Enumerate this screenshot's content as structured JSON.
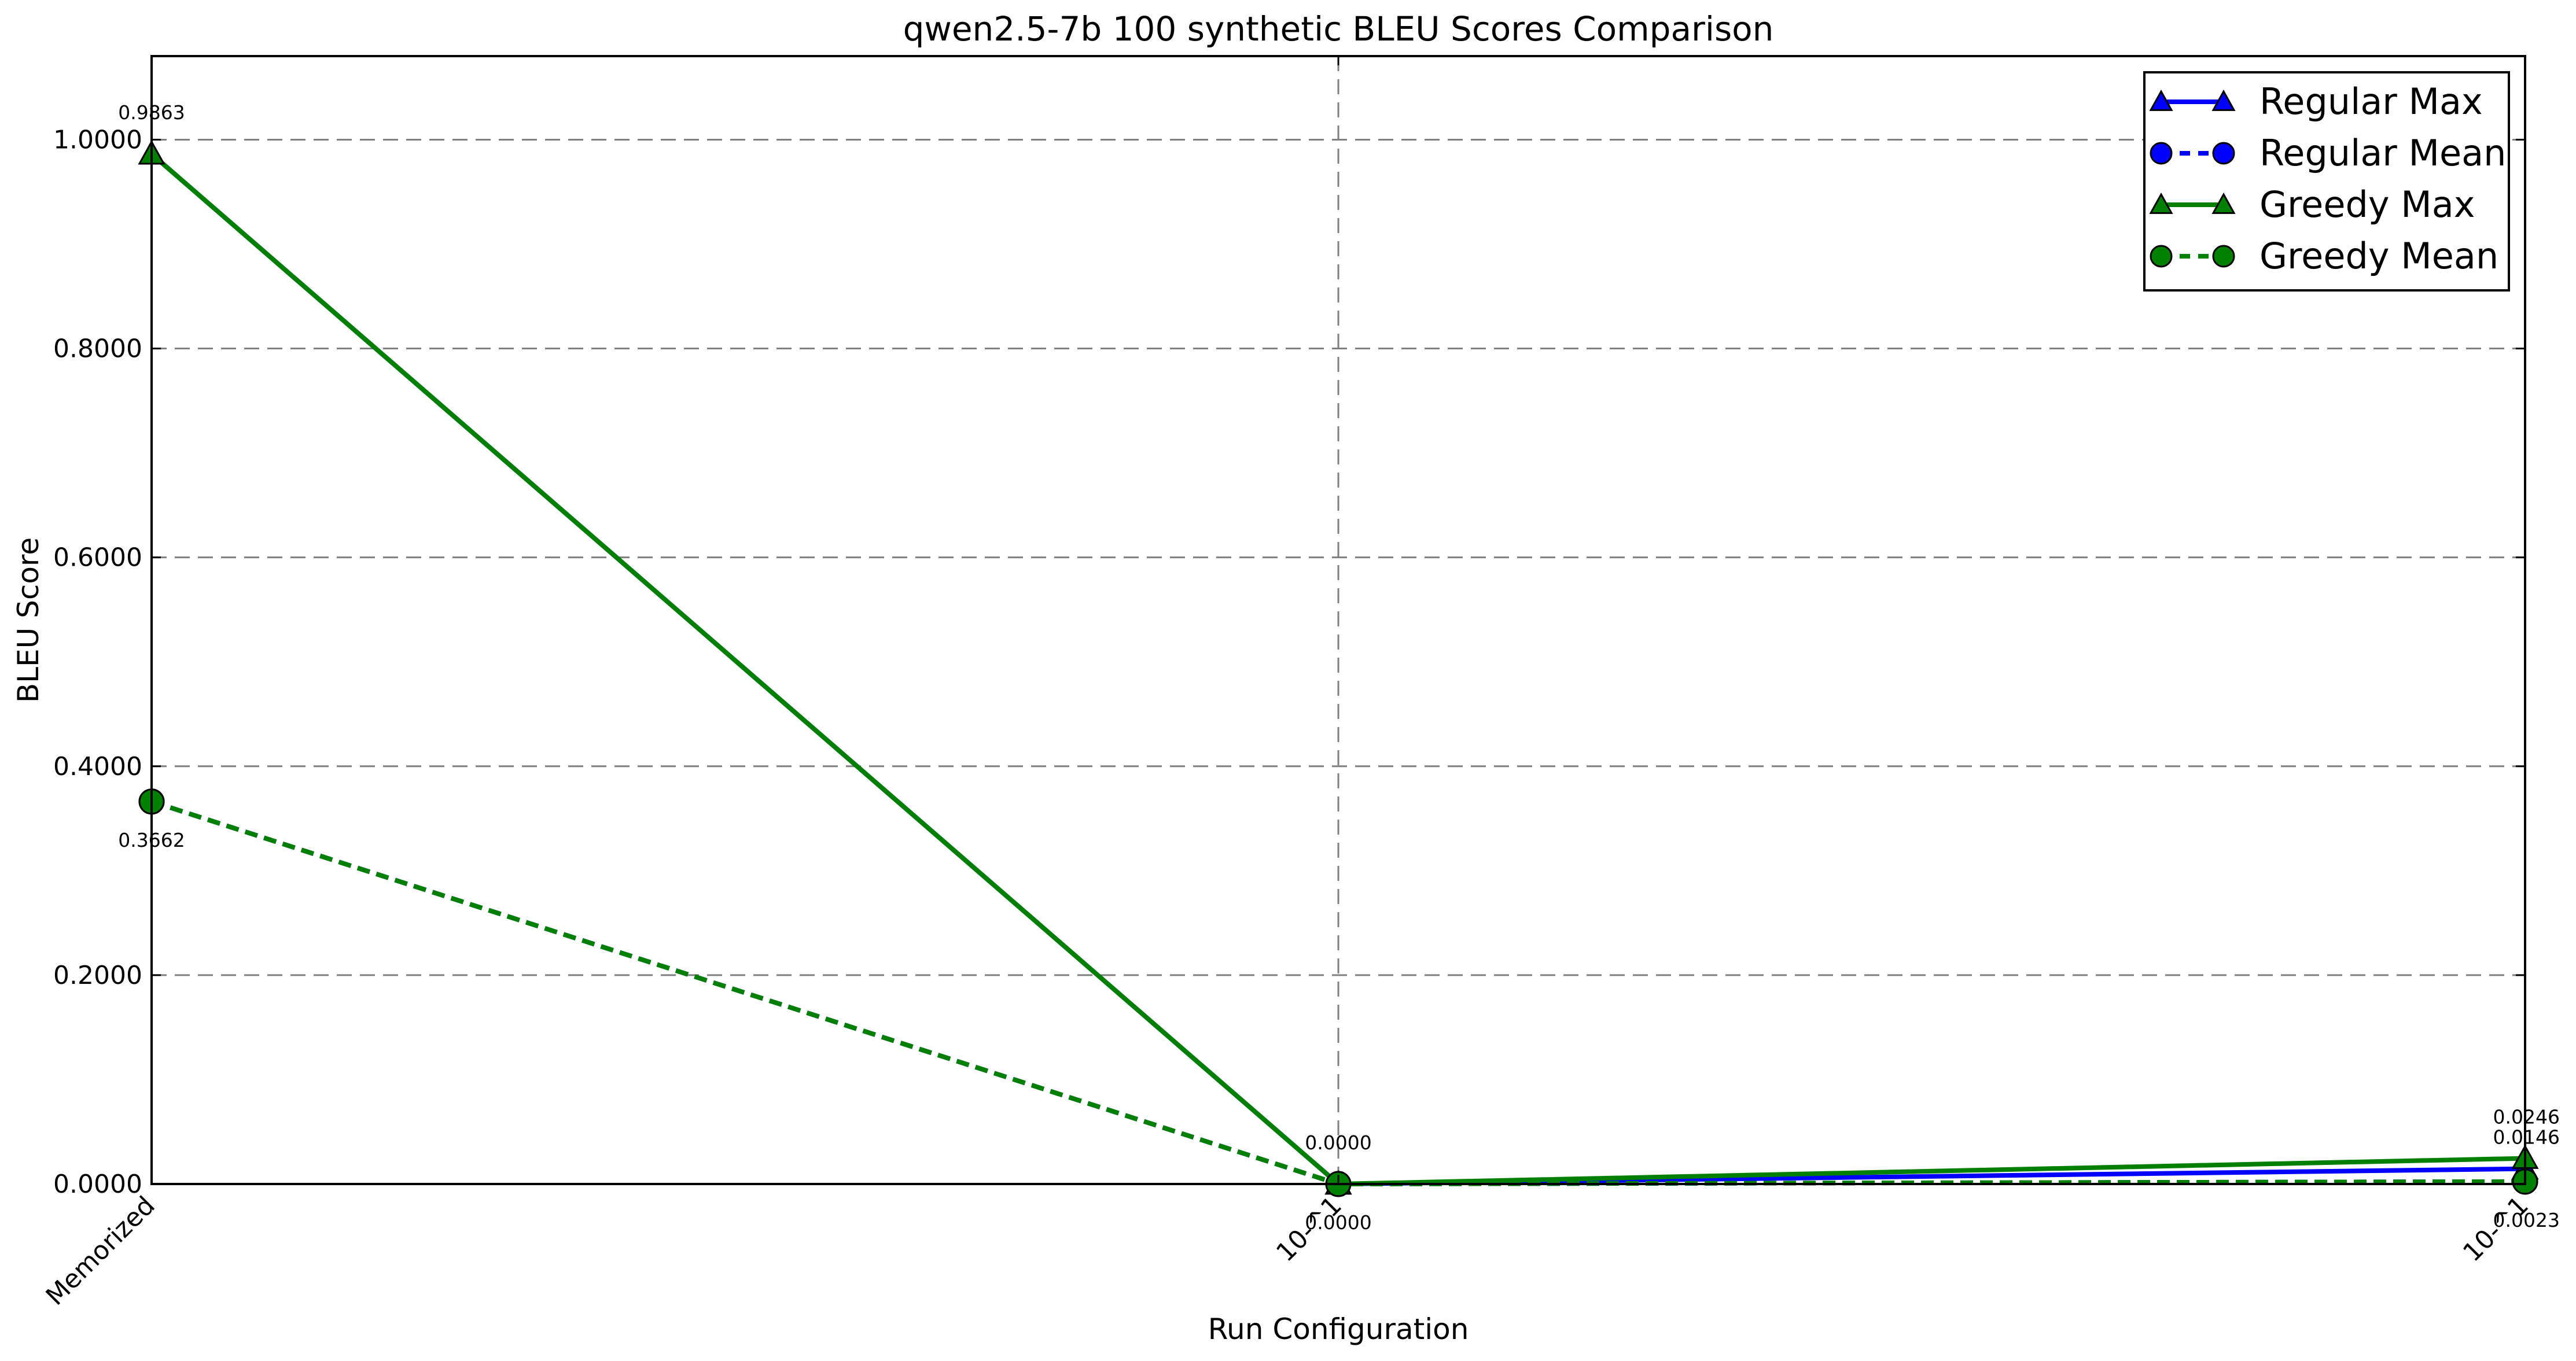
{
  "chart_data": {
    "type": "line",
    "title": "qwen2.5-7b 100 synthetic BLEU Scores Comparison",
    "xlabel": "Run Configuration",
    "ylabel": "BLEU Score",
    "categories": [
      "Memorized",
      "10-^1",
      "10-^1"
    ],
    "ylim": [
      0,
      1.08
    ],
    "yticks": [
      "0.0000",
      "0.2000",
      "0.4000",
      "0.6000",
      "0.8000",
      "1.0000"
    ],
    "grid": true,
    "legend_position": "top-right",
    "series": [
      {
        "name": "Regular Max",
        "values": [
          0.9863,
          0.0,
          0.0146
        ],
        "color": "#0000ff",
        "dash": "solid",
        "marker": "triangle"
      },
      {
        "name": "Regular Mean",
        "values": [
          0.3662,
          0.0,
          0.0023
        ],
        "color": "#0000ff",
        "dash": "dashed",
        "marker": "circle"
      },
      {
        "name": "Greedy Max",
        "values": [
          0.9863,
          0.0,
          0.0246
        ],
        "color": "#007f00",
        "dash": "solid",
        "marker": "triangle"
      },
      {
        "name": "Greedy Mean",
        "values": [
          0.3662,
          0.0,
          0.0023
        ],
        "color": "#007f00",
        "dash": "dashed",
        "marker": "circle"
      }
    ],
    "annotations": [
      {
        "text": "0.9863",
        "category_index": 0,
        "value": 0.9863,
        "side": "above"
      },
      {
        "text": "0.3662",
        "category_index": 0,
        "value": 0.3662,
        "side": "below"
      },
      {
        "text": "0.0000",
        "category_index": 1,
        "value": 0.0,
        "side": "above"
      },
      {
        "text": "0.0000",
        "category_index": 1,
        "value": 0.0,
        "side": "below"
      },
      {
        "text": "0.0246",
        "category_index": 2,
        "value": 0.0246,
        "side": "above"
      },
      {
        "text": "0.0146",
        "category_index": 2,
        "value": 0.0146,
        "side": "above-second"
      },
      {
        "text": "0.0023",
        "category_index": 2,
        "value": 0.0023,
        "side": "below"
      }
    ]
  }
}
